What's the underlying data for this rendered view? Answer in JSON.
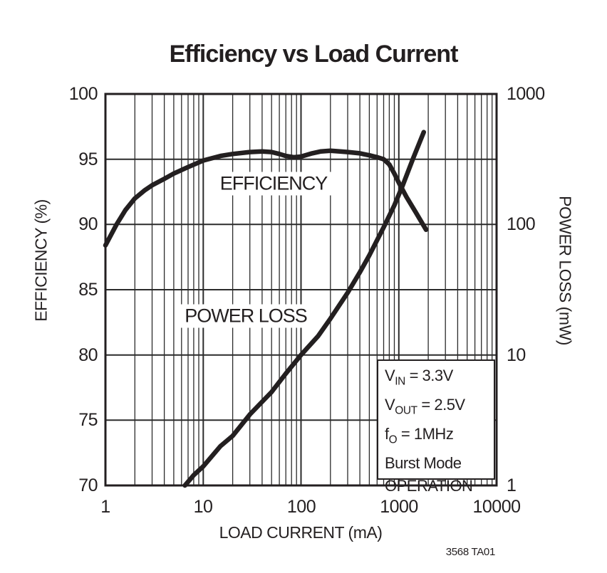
{
  "figure": {
    "title": "Efficiency vs Load Current",
    "note": "3568 TA01"
  },
  "chart_data": {
    "type": "line",
    "title": "Efficiency vs Load Current",
    "grid": "on",
    "x_axis": {
      "label": "LOAD CURRENT (mA)",
      "scale": "log",
      "range": [
        1,
        10000
      ],
      "ticks": [
        1,
        10,
        100,
        1000,
        10000
      ],
      "tick_labels": [
        "1",
        "10",
        "100",
        "1000",
        "10000"
      ]
    },
    "y_axis_left": {
      "label": "EFFICIENCY (%)",
      "scale": "linear",
      "range": [
        70,
        100
      ],
      "ticks": [
        100,
        95,
        90,
        85,
        80,
        75,
        70
      ],
      "tick_labels": [
        "100",
        "95",
        "90",
        "85",
        "80",
        "75",
        "70"
      ],
      "gridline_step": 5
    },
    "y_axis_right": {
      "label": "POWER LOSS (mW)",
      "scale": "log",
      "range": [
        1,
        1000
      ],
      "ticks": [
        1000,
        100,
        10,
        1
      ],
      "tick_labels": [
        "1000",
        "100",
        "10",
        "1"
      ]
    },
    "series": [
      {
        "name": "EFFICIENCY",
        "axis": "left",
        "units": [
          "mA",
          "%"
        ],
        "points": [
          [
            1,
            88.4
          ],
          [
            1.3,
            90.0
          ],
          [
            1.6,
            91.1
          ],
          [
            2,
            92.0
          ],
          [
            2.5,
            92.6
          ],
          [
            3,
            93.0
          ],
          [
            4,
            93.5
          ],
          [
            5,
            93.9
          ],
          [
            7,
            94.4
          ],
          [
            10,
            94.9
          ],
          [
            15,
            95.25
          ],
          [
            20,
            95.4
          ],
          [
            30,
            95.55
          ],
          [
            40,
            95.6
          ],
          [
            50,
            95.55
          ],
          [
            60,
            95.4
          ],
          [
            70,
            95.25
          ],
          [
            85,
            95.15
          ],
          [
            100,
            95.2
          ],
          [
            130,
            95.45
          ],
          [
            160,
            95.6
          ],
          [
            200,
            95.65
          ],
          [
            250,
            95.6
          ],
          [
            300,
            95.55
          ],
          [
            400,
            95.45
          ],
          [
            500,
            95.3
          ],
          [
            600,
            95.15
          ],
          [
            700,
            95.0
          ],
          [
            800,
            94.6
          ],
          [
            900,
            93.9
          ],
          [
            1000,
            93.2
          ],
          [
            1200,
            92.1
          ],
          [
            1500,
            90.9
          ],
          [
            1900,
            89.6
          ]
        ]
      },
      {
        "name": "POWER LOSS",
        "axis": "right",
        "units": [
          "mA",
          "mW"
        ],
        "points": [
          [
            6.5,
            1.0
          ],
          [
            8,
            1.2
          ],
          [
            10,
            1.4
          ],
          [
            15,
            2.0
          ],
          [
            20,
            2.4
          ],
          [
            30,
            3.5
          ],
          [
            50,
            5.2
          ],
          [
            70,
            7.2
          ],
          [
            100,
            10
          ],
          [
            150,
            14
          ],
          [
            200,
            19
          ],
          [
            300,
            30
          ],
          [
            400,
            43
          ],
          [
            500,
            58
          ],
          [
            700,
            95
          ],
          [
            900,
            140
          ],
          [
            1100,
            200
          ],
          [
            1400,
            320
          ],
          [
            1800,
            510
          ]
        ]
      }
    ],
    "annotation": {
      "lines": [
        {
          "pre": "V",
          "sub": "IN",
          "post": " = 3.3V"
        },
        {
          "pre": "V",
          "sub": "OUT",
          "post": " = 2.5V"
        },
        {
          "pre": "f",
          "sub": "O",
          "post": " = 1MHz"
        },
        {
          "pre": "Burst Mode",
          "sub": "",
          "post": ""
        },
        {
          "pre": "OPERATION",
          "sub": "",
          "post": ""
        }
      ]
    },
    "colors": {
      "curve": "#231f20",
      "grid": "#2b2b2b",
      "text": "#231f20",
      "background": "#ffffff"
    }
  }
}
